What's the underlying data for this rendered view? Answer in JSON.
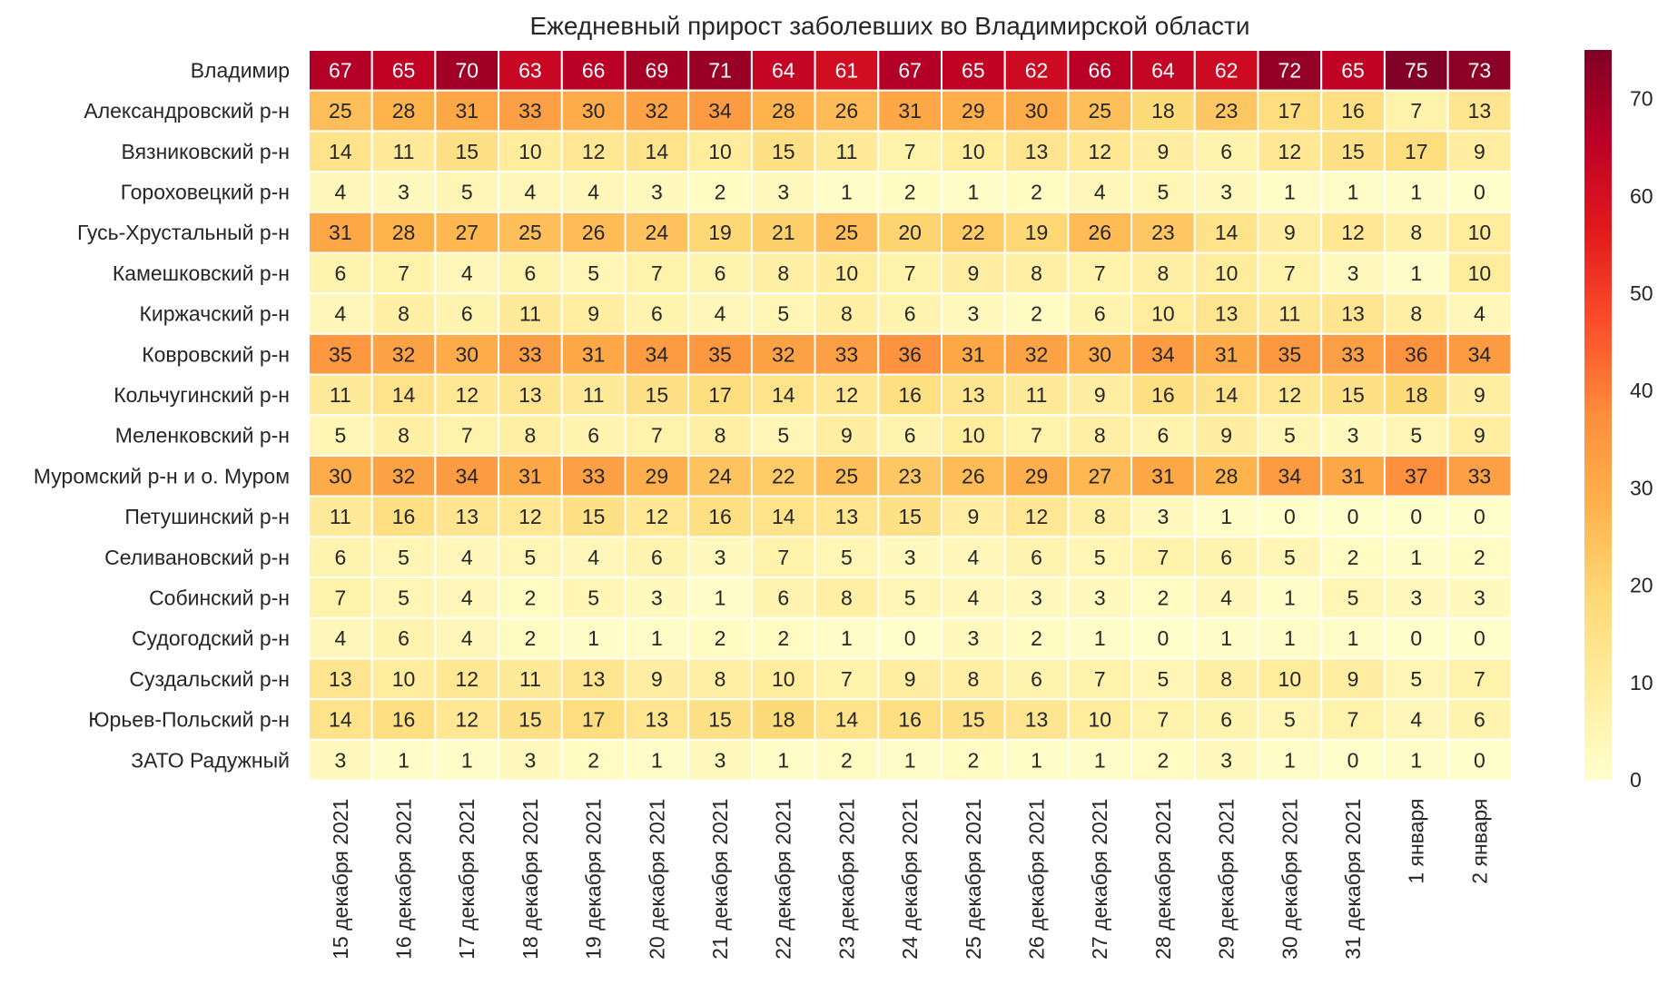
{
  "chart_data": {
    "type": "heatmap",
    "title": "Ежедневный прирост заболевших во Владимирской области",
    "x": [
      "15 декабря 2021",
      "16 декабря 2021",
      "17 декабря 2021",
      "18 декабря 2021",
      "19 декабря 2021",
      "20 декабря 2021",
      "21 декабря 2021",
      "22 декабря 2021",
      "23 декабря 2021",
      "24 декабря 2021",
      "25 декабря 2021",
      "26 декабря 2021",
      "27 декабря 2021",
      "28 декабря 2021",
      "29 декабря 2021",
      "30 декабря 2021",
      "31 декабря 2021",
      "1 января",
      "2 января"
    ],
    "y": [
      "Владимир",
      "Александровский р-н",
      "Вязниковский р-н",
      "Гороховецкий р-н",
      "Гусь-Хрустальный р-н",
      "Камешковский р-н",
      "Киржачский р-н",
      "Ковровский р-н",
      "Кольчугинский р-н",
      "Меленковский р-н",
      "Муромский р-н и о. Муром",
      "Петушинский р-н",
      "Селивановский р-н",
      "Собинский р-н",
      "Судогодский р-н",
      "Суздальский р-н",
      "Юрьев-Польский р-н",
      "ЗАТО Радужный"
    ],
    "values": [
      [
        67,
        65,
        70,
        63,
        66,
        69,
        71,
        64,
        61,
        67,
        65,
        62,
        66,
        64,
        62,
        72,
        65,
        75,
        73
      ],
      [
        25,
        28,
        31,
        33,
        30,
        32,
        34,
        28,
        26,
        31,
        29,
        30,
        25,
        18,
        23,
        17,
        16,
        7,
        13
      ],
      [
        14,
        11,
        15,
        10,
        12,
        14,
        10,
        15,
        11,
        7,
        10,
        13,
        12,
        9,
        6,
        12,
        15,
        17,
        9
      ],
      [
        4,
        3,
        5,
        4,
        4,
        3,
        2,
        3,
        1,
        2,
        1,
        2,
        4,
        5,
        3,
        1,
        1,
        1,
        0
      ],
      [
        31,
        28,
        27,
        25,
        26,
        24,
        19,
        21,
        25,
        20,
        22,
        19,
        26,
        23,
        14,
        9,
        12,
        8,
        10
      ],
      [
        6,
        7,
        4,
        6,
        5,
        7,
        6,
        8,
        10,
        7,
        9,
        8,
        7,
        8,
        10,
        7,
        3,
        1,
        10
      ],
      [
        4,
        8,
        6,
        11,
        9,
        6,
        4,
        5,
        8,
        6,
        3,
        2,
        6,
        10,
        13,
        11,
        13,
        8,
        4
      ],
      [
        35,
        32,
        30,
        33,
        31,
        34,
        35,
        32,
        33,
        36,
        31,
        32,
        30,
        34,
        31,
        35,
        33,
        36,
        34
      ],
      [
        11,
        14,
        12,
        13,
        11,
        15,
        17,
        14,
        12,
        16,
        13,
        11,
        9,
        16,
        14,
        12,
        15,
        18,
        9
      ],
      [
        5,
        8,
        7,
        8,
        6,
        7,
        8,
        5,
        9,
        6,
        10,
        7,
        8,
        6,
        9,
        5,
        3,
        5,
        9
      ],
      [
        30,
        32,
        34,
        31,
        33,
        29,
        24,
        22,
        25,
        23,
        26,
        29,
        27,
        31,
        28,
        34,
        31,
        37,
        33
      ],
      [
        11,
        16,
        13,
        12,
        15,
        12,
        16,
        14,
        13,
        15,
        9,
        12,
        8,
        3,
        1,
        0,
        0,
        0,
        0
      ],
      [
        6,
        5,
        4,
        5,
        4,
        6,
        3,
        7,
        5,
        3,
        4,
        6,
        5,
        7,
        6,
        5,
        2,
        1,
        2
      ],
      [
        7,
        5,
        4,
        2,
        5,
        3,
        1,
        6,
        8,
        5,
        4,
        3,
        3,
        2,
        4,
        1,
        5,
        3,
        3
      ],
      [
        4,
        6,
        4,
        2,
        1,
        1,
        2,
        2,
        1,
        0,
        3,
        2,
        1,
        0,
        1,
        1,
        1,
        0,
        0
      ],
      [
        13,
        10,
        12,
        11,
        13,
        9,
        8,
        10,
        7,
        9,
        8,
        6,
        7,
        5,
        8,
        10,
        9,
        5,
        7
      ],
      [
        14,
        16,
        12,
        15,
        17,
        13,
        15,
        18,
        14,
        16,
        15,
        13,
        10,
        7,
        6,
        5,
        7,
        4,
        6
      ],
      [
        3,
        1,
        1,
        3,
        2,
        1,
        3,
        1,
        2,
        1,
        2,
        1,
        1,
        2,
        3,
        1,
        0,
        1,
        0
      ]
    ],
    "colorbar": {
      "min": 0,
      "max": 75,
      "ticks": [
        0,
        10,
        20,
        30,
        40,
        50,
        60,
        70
      ],
      "colormap": "YlOrRd"
    },
    "grid": true,
    "legend": "colorbar-right"
  }
}
